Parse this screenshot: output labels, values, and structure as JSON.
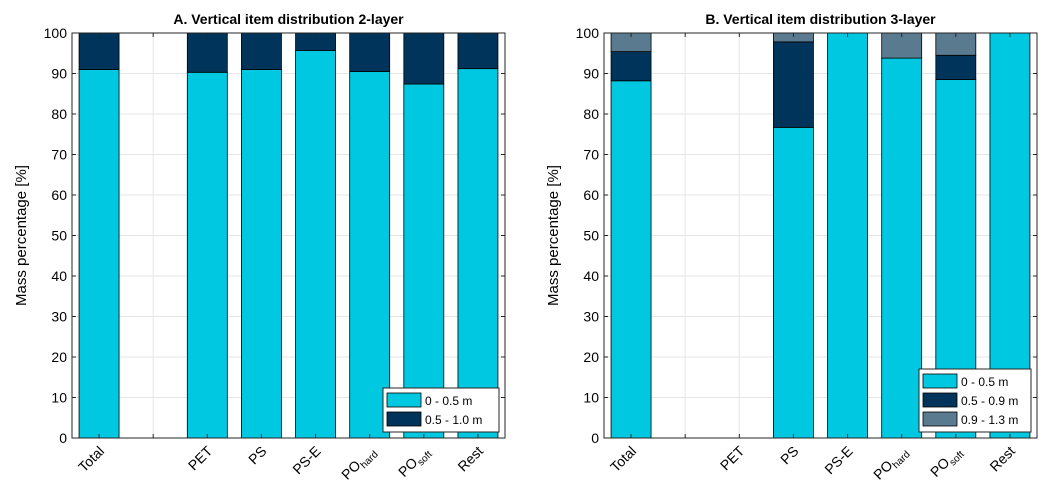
{
  "chart_data": [
    {
      "type": "bar",
      "stacked": true,
      "title": "A. Vertical item distribution 2-layer",
      "ylabel": "Mass percentage [%]",
      "ylim": [
        0,
        100
      ],
      "yticks": [
        0,
        10,
        20,
        30,
        40,
        50,
        60,
        70,
        80,
        90,
        100
      ],
      "grid": true,
      "legend_position": "bottom-right",
      "categories": [
        {
          "main": "Total",
          "sub": ""
        },
        {
          "main": "",
          "sub": ""
        },
        {
          "main": "PET",
          "sub": ""
        },
        {
          "main": "PS",
          "sub": ""
        },
        {
          "main": "PS-E",
          "sub": ""
        },
        {
          "main": "PO",
          "sub": "hard"
        },
        {
          "main": "PO",
          "sub": "soft"
        },
        {
          "main": "Rest",
          "sub": ""
        }
      ],
      "series": [
        {
          "name": "0 - 0.5 m",
          "color": "#00c8e0",
          "values": [
            91.0,
            null,
            90.3,
            91.0,
            95.7,
            90.5,
            87.4,
            91.2
          ]
        },
        {
          "name": "0.5 - 1.0 m",
          "color": "#00345a",
          "values": [
            9.0,
            null,
            9.7,
            9.0,
            4.3,
            9.5,
            12.6,
            8.8
          ]
        }
      ]
    },
    {
      "type": "bar",
      "stacked": true,
      "title": "B. Vertical item distribution 3-layer",
      "ylabel": "Mass percentage [%]",
      "ylim": [
        0,
        100
      ],
      "yticks": [
        0,
        10,
        20,
        30,
        40,
        50,
        60,
        70,
        80,
        90,
        100
      ],
      "grid": true,
      "legend_position": "bottom-right",
      "categories": [
        {
          "main": "Total",
          "sub": ""
        },
        {
          "main": "",
          "sub": ""
        },
        {
          "main": "PET",
          "sub": ""
        },
        {
          "main": "PS",
          "sub": ""
        },
        {
          "main": "PS-E",
          "sub": ""
        },
        {
          "main": "PO",
          "sub": "hard"
        },
        {
          "main": "PO",
          "sub": "soft"
        },
        {
          "main": "Rest",
          "sub": ""
        }
      ],
      "series": [
        {
          "name": "0 - 0.5 m",
          "color": "#00c8e0",
          "values": [
            88.2,
            null,
            null,
            76.7,
            100.0,
            93.8,
            88.5,
            100.0
          ]
        },
        {
          "name": "0.5 - 0.9 m",
          "color": "#00345a",
          "values": [
            7.2,
            null,
            null,
            21.1,
            0.0,
            0.0,
            6.0,
            0.0
          ]
        },
        {
          "name": "0.9 - 1.3 m",
          "color": "#5a7b8f",
          "values": [
            4.6,
            null,
            null,
            2.2,
            0.0,
            6.2,
            5.5,
            0.0
          ]
        }
      ]
    }
  ]
}
